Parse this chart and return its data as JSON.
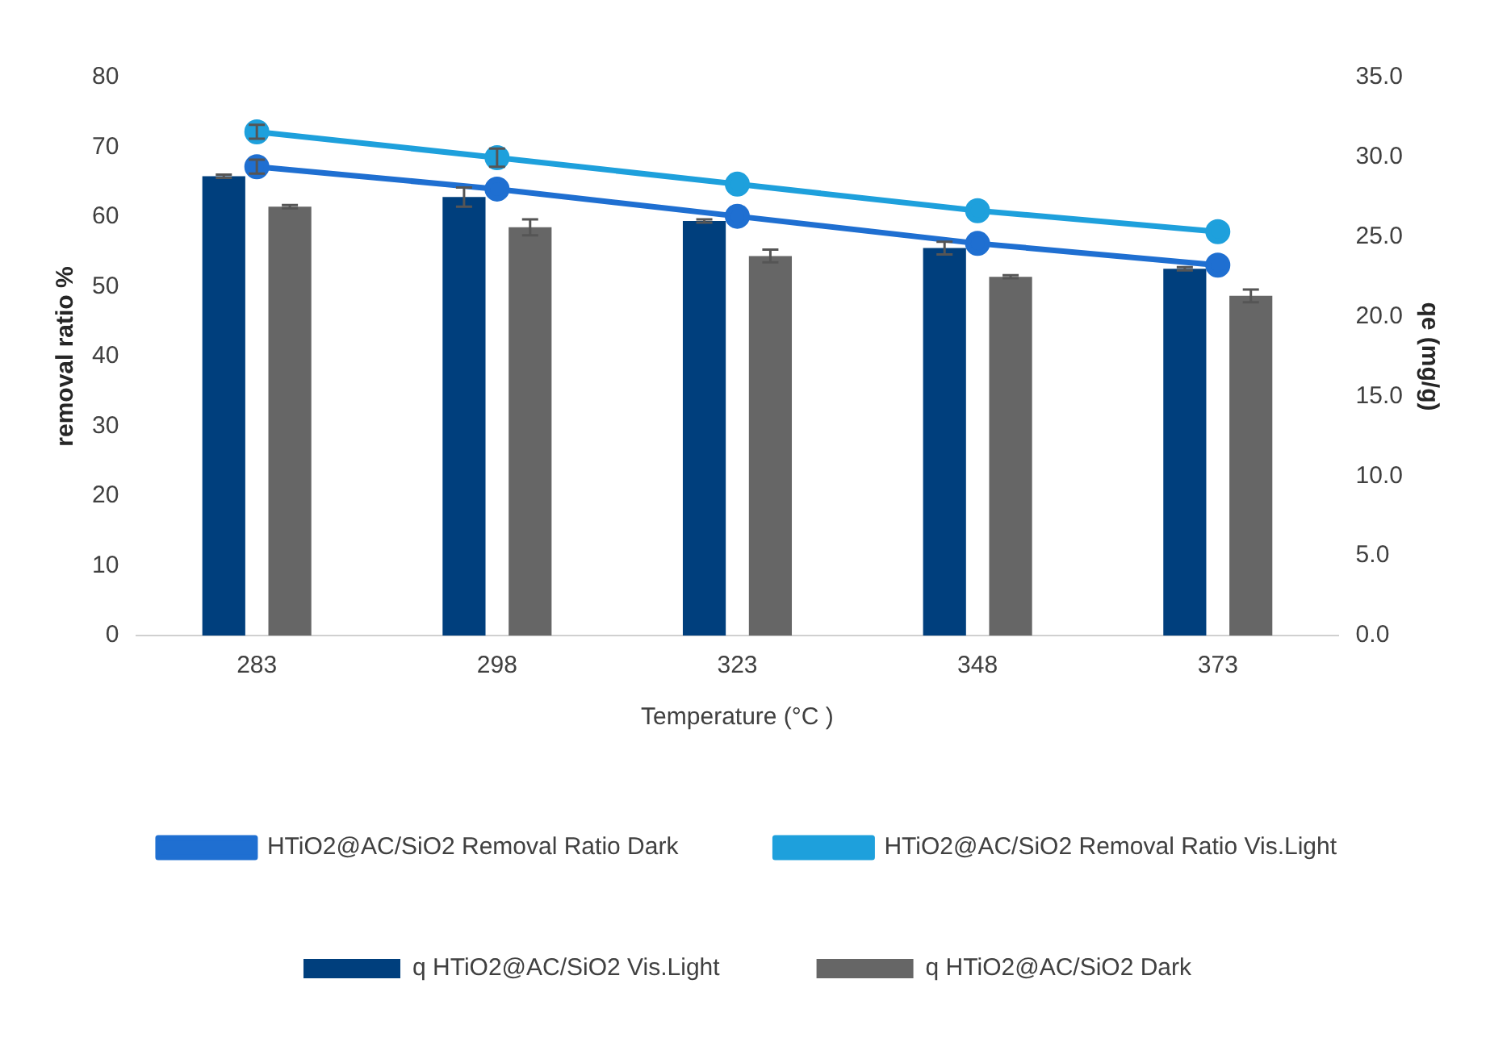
{
  "chart_data": {
    "type": "bar",
    "xlabel": "Temperature (°C )",
    "ylabel": "removal ratio %",
    "y2label": "qe (mg/g)",
    "categories": [
      "283",
      "298",
      "323",
      "348",
      "373"
    ],
    "series": [
      {
        "name": "q HTiO2@AC/SiO2 Vis.Light",
        "axis": "y2",
        "color": "#003f7d",
        "values": [
          28.8,
          27.5,
          26.0,
          24.3,
          23.0
        ],
        "errors": [
          0.1,
          0.6,
          0.1,
          0.4,
          0.1
        ]
      },
      {
        "name": "q HTiO2@AC/SiO2 Dark",
        "axis": "y2",
        "color": "#666666",
        "values": [
          26.9,
          25.6,
          23.8,
          22.5,
          21.3
        ],
        "errors": [
          0.1,
          0.5,
          0.4,
          0.1,
          0.4
        ]
      },
      {
        "name": "HTiO2@AC/SiO2 Removal Ratio Dark",
        "type": "line",
        "color": "#1f6fd1",
        "values": [
          67.2,
          64.0,
          60.1,
          56.2,
          53.1
        ],
        "errors": [
          1,
          null,
          null,
          null,
          null
        ]
      },
      {
        "name": "HTiO2@AC/SiO2 Removal Ratio Vis.Light",
        "type": "line",
        "color": "#1ea0dc",
        "values": [
          72.2,
          68.5,
          64.7,
          60.9,
          57.9
        ],
        "errors": [
          1,
          1.3,
          null,
          null,
          null
        ]
      }
    ],
    "ylim": [
      0,
      80
    ],
    "yticks": [
      0,
      10,
      20,
      30,
      40,
      50,
      60,
      70,
      80
    ],
    "y2lim": [
      0,
      35
    ],
    "y2ticks": [
      {
        "value": 0,
        "label": "0.0"
      },
      {
        "value": 5,
        "label": "5.0"
      },
      {
        "value": 10,
        "label": "10.0"
      },
      {
        "value": 15,
        "label": "15.0"
      },
      {
        "value": 20,
        "label": "20.0"
      },
      {
        "value": 25,
        "label": "25.0"
      },
      {
        "value": 30,
        "label": "30.0"
      },
      {
        "value": 35,
        "label": "35.0"
      }
    ],
    "grid": false,
    "legend": "bottom",
    "marker": "circle",
    "line_style": "solid"
  }
}
